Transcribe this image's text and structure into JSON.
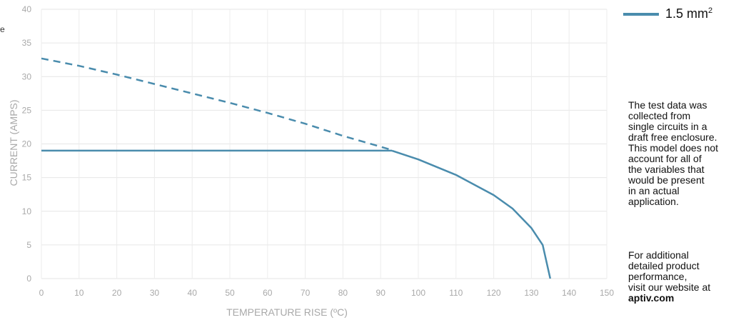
{
  "chart_data": {
    "type": "line",
    "xlabel": "TEMPERATURE RISE (ºC)",
    "ylabel": "CURRENT (AMPS)",
    "xlim": [
      0,
      150
    ],
    "ylim": [
      0,
      40
    ],
    "xticks": [
      "0",
      "10",
      "20",
      "30",
      "40",
      "50",
      "60",
      "70",
      "80",
      "90",
      "100",
      "110",
      "120",
      "130",
      "140",
      "150"
    ],
    "yticks": [
      "0",
      "5",
      "10",
      "15",
      "20",
      "25",
      "30",
      "35",
      "40"
    ],
    "grid": true,
    "legend_position": "top-right",
    "series": [
      {
        "name": "1.5 mm²",
        "color": "#4a8cad",
        "segments": [
          {
            "style": "dashed",
            "points": [
              [
                0,
                32.7
              ],
              [
                10,
                31.6
              ],
              [
                20,
                30.3
              ],
              [
                30,
                28.9
              ],
              [
                40,
                27.5
              ],
              [
                50,
                26.1
              ],
              [
                60,
                24.6
              ],
              [
                70,
                23.0
              ],
              [
                80,
                21.2
              ],
              [
                93,
                19.1
              ]
            ]
          },
          {
            "style": "solid",
            "points": [
              [
                0,
                19
              ],
              [
                93,
                19
              ]
            ]
          },
          {
            "style": "solid",
            "points": [
              [
                93,
                19
              ],
              [
                100,
                17.7
              ],
              [
                110,
                15.4
              ],
              [
                120,
                12.4
              ],
              [
                125,
                10.4
              ],
              [
                130,
                7.5
              ],
              [
                133,
                5.0
              ],
              [
                135,
                0
              ]
            ]
          }
        ]
      }
    ]
  },
  "legend": {
    "label": "1.5 mm",
    "superscript": "2"
  },
  "note1": [
    "The test data was",
    "collected from",
    "single circuits in a",
    "draft free enclosure.",
    "This model does not",
    "account for all of",
    "the variables that",
    "would be present",
    "in an actual",
    "application."
  ],
  "note2": [
    "For additional",
    "detailed product",
    "performance,",
    "visit our website at"
  ],
  "note2_link": "aptiv.com",
  "side_stub": "e"
}
